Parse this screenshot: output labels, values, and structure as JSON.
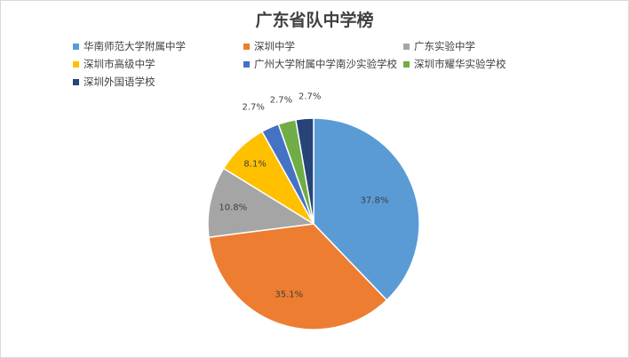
{
  "chart_data": {
    "type": "pie",
    "title": "广东省队中学榜",
    "legend_position": "top",
    "slices": [
      {
        "label": "华南师范大学附属中学",
        "value": 37.8,
        "value_label": "37.8%",
        "color": "#5b9bd5"
      },
      {
        "label": "深圳中学",
        "value": 35.1,
        "value_label": "35.1%",
        "color": "#ed7d31"
      },
      {
        "label": "广东实验中学",
        "value": 10.8,
        "value_label": "10.8%",
        "color": "#a5a5a5"
      },
      {
        "label": "深圳市高级中学",
        "value": 8.1,
        "value_label": "8.1%",
        "color": "#ffc000"
      },
      {
        "label": "广州大学附属中学南沙实验学校",
        "value": 2.7,
        "value_label": "2.7%",
        "color": "#4472c4"
      },
      {
        "label": "深圳市耀华实验学校",
        "value": 2.7,
        "value_label": "2.7%",
        "color": "#70ad47"
      },
      {
        "label": "深圳外国语学校",
        "value": 2.7,
        "value_label": "2.7%",
        "color": "#264478"
      }
    ]
  }
}
